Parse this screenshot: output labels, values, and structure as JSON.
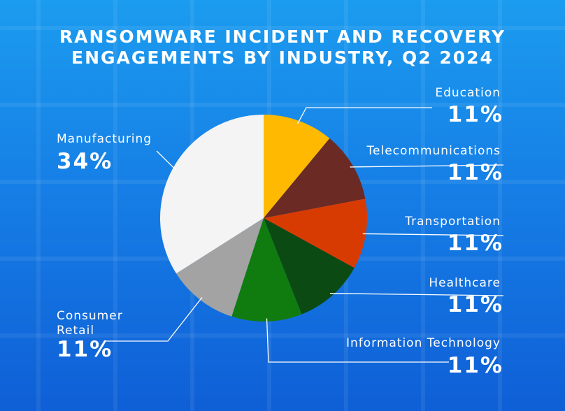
{
  "chart_data": {
    "type": "pie",
    "title_line1": "RANSOMWARE INCIDENT AND RECOVERY",
    "title_line2": "ENGAGEMENTS BY INDUSTRY, Q2 2024",
    "slices": [
      {
        "label": "Education",
        "value": 11,
        "display": "11%",
        "color": "#ffb900"
      },
      {
        "label": "Telecommunications",
        "value": 11,
        "display": "11%",
        "color": "#6b2a24"
      },
      {
        "label": "Transportation",
        "value": 11,
        "display": "11%",
        "color": "#d83b01"
      },
      {
        "label": "Healthcare",
        "value": 11,
        "display": "11%",
        "color": "#0b4a12"
      },
      {
        "label": "Information Technology",
        "value": 11,
        "display": "11%",
        "color": "#107c10"
      },
      {
        "label": "Consumer Retail",
        "value": 11,
        "display": "11%",
        "color": "#a3a3a3"
      },
      {
        "label": "Manufacturing",
        "value": 34,
        "display": "34%",
        "color": "#f4f4f4"
      }
    ]
  },
  "labels": {
    "education": "Education",
    "telecommunications": "Telecommunications",
    "transportation": "Transportation",
    "healthcare": "Healthcare",
    "information_technology": "Information Technology",
    "consumer_retail_line1": "Consumer",
    "consumer_retail_line2": "Retail",
    "manufacturing": "Manufacturing"
  }
}
